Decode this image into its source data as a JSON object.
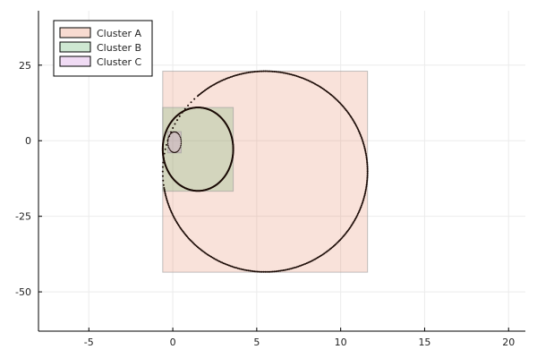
{
  "chart_data": {
    "type": "scatter",
    "title": "",
    "xlabel": "",
    "ylabel": "",
    "xlim": [
      -8,
      21
    ],
    "ylim": [
      -63,
      43
    ],
    "x_ticks": [
      -5,
      0,
      5,
      10,
      15,
      20
    ],
    "x_tick_labels": [
      "-5",
      "0",
      "5",
      "10",
      "15",
      "20"
    ],
    "y_ticks": [
      -50,
      -25,
      0,
      25
    ],
    "y_tick_labels": [
      "-50",
      "-25",
      "0",
      "25"
    ],
    "grid": true,
    "legend_position": "top-left",
    "series": [
      {
        "name": "Cluster A",
        "color": "#e26f46",
        "bounding_box": {
          "xmin": -0.6,
          "xmax": 11.6,
          "ymin": -43.5,
          "ymax": 23.0
        },
        "outline": {
          "shape": "circle",
          "center": [
            5.5,
            -10.2
          ],
          "radius": 33.2
        }
      },
      {
        "name": "Cluster B",
        "color": "#3da44d",
        "bounding_box": {
          "xmin": -0.6,
          "xmax": 3.6,
          "ymin": -16.7,
          "ymax": 11.0
        },
        "outline": {
          "shape": "circle",
          "center": [
            1.5,
            -2.8
          ],
          "radius": 13.8
        }
      },
      {
        "name": "Cluster C",
        "color": "#c271d2",
        "bounding_box": {
          "xmin": -0.3,
          "xmax": 0.5,
          "ymin": -4.0,
          "ymax": 3.0
        },
        "outline": {
          "shape": "circle",
          "center": [
            0.1,
            -0.5
          ],
          "radius": 3.4
        }
      }
    ]
  }
}
